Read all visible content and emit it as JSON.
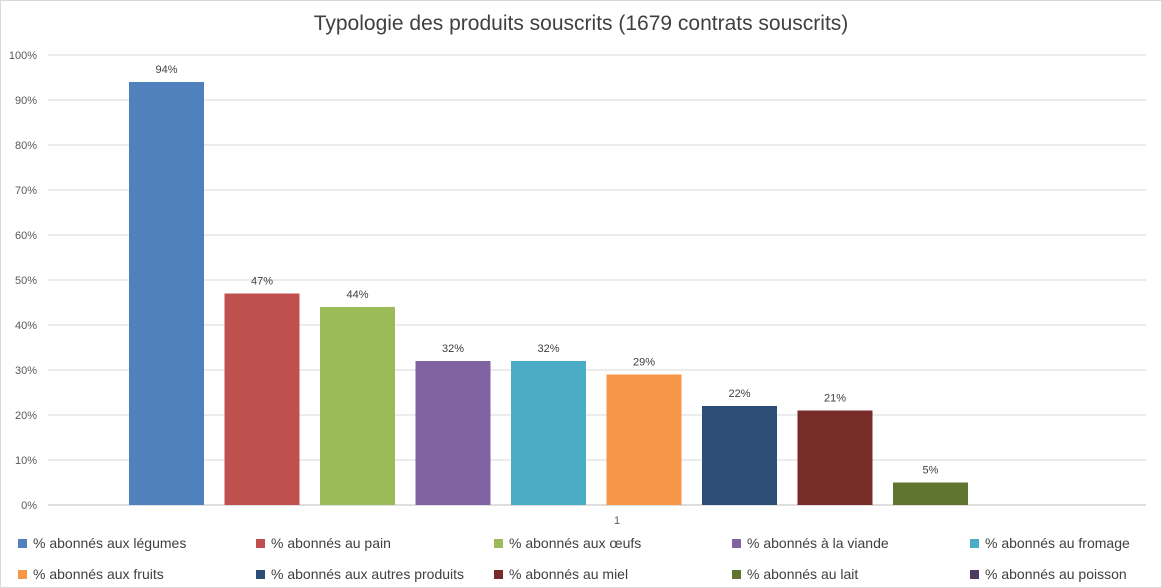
{
  "chart_data": {
    "type": "bar",
    "title": "Typologie des produits souscrits (1679  contrats souscrits)",
    "categories": [
      "1"
    ],
    "ylim": [
      0,
      1
    ],
    "y_ticks": [
      "0%",
      "10%",
      "20%",
      "30%",
      "40%",
      "50%",
      "60%",
      "70%",
      "80%",
      "90%",
      "100%"
    ],
    "grid": true,
    "legend_position": "bottom",
    "series": [
      {
        "name": "%  abonnés aux légumes",
        "value": 0.94,
        "label": "94%",
        "color": "#4F81BD"
      },
      {
        "name": "%  abonnés au pain",
        "value": 0.47,
        "label": "47%",
        "color": "#C0504D"
      },
      {
        "name": "%  abonnés aux œufs",
        "value": 0.44,
        "label": "44%",
        "color": "#9BBB59"
      },
      {
        "name": "%  abonnés à la viande",
        "value": 0.32,
        "label": "32%",
        "color": "#8064A2"
      },
      {
        "name": "%  abonnés au fromage",
        "value": 0.32,
        "label": "32%",
        "color": "#4BACC6"
      },
      {
        "name": "%  abonnés aux fruits",
        "value": 0.29,
        "label": "29%",
        "color": "#F79646"
      },
      {
        "name": "%  abonnés aux autres produits",
        "value": 0.22,
        "label": "22%",
        "color": "#2C4D75"
      },
      {
        "name": "%  abonnés au miel",
        "value": 0.21,
        "label": "21%",
        "color": "#772C2A"
      },
      {
        "name": "%  abonnés au lait",
        "value": 0.05,
        "label": "5%",
        "color": "#5F7530"
      },
      {
        "name": "%  abonnés au poisson",
        "value": 0.0,
        "label": "",
        "color": "#4D3B62"
      }
    ]
  }
}
